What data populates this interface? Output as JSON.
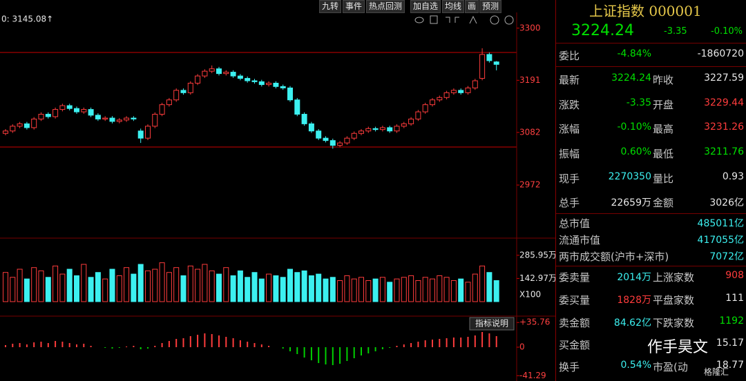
{
  "toolbar": [
    "九转",
    "事件",
    "热点回测",
    "加自选",
    "均线",
    "画",
    "预测"
  ],
  "main_chart": {
    "label": "0: 3145.08↑",
    "ylim": [
      2861,
      3330
    ],
    "yticks": [
      2972,
      3082,
      3191,
      3300
    ],
    "candles": [
      [
        3080,
        3089,
        3076,
        3085
      ],
      [
        3085,
        3099,
        3081,
        3095
      ],
      [
        3095,
        3104,
        3091,
        3100
      ],
      [
        3100,
        3104,
        3088,
        3092
      ],
      [
        3092,
        3114,
        3088,
        3110
      ],
      [
        3110,
        3124,
        3106,
        3120
      ],
      [
        3120,
        3124,
        3111,
        3115
      ],
      [
        3115,
        3134,
        3111,
        3130
      ],
      [
        3130,
        3142,
        3126,
        3138
      ],
      [
        3138,
        3142,
        3128,
        3132
      ],
      [
        3132,
        3136,
        3121,
        3125
      ],
      [
        3125,
        3134,
        3121,
        3130
      ],
      [
        3130,
        3134,
        3114,
        3118
      ],
      [
        3118,
        3122,
        3106,
        3110
      ],
      [
        3110,
        3116,
        3106,
        3112
      ],
      [
        3112,
        3116,
        3101,
        3105
      ],
      [
        3105,
        3112,
        3101,
        3108
      ],
      [
        3108,
        3116,
        3104,
        3112
      ],
      [
        3112,
        3116,
        3106,
        3110
      ],
      [
        3085,
        3090,
        3060,
        3070
      ],
      [
        3070,
        3099,
        3066,
        3095
      ],
      [
        3095,
        3124,
        3091,
        3120
      ],
      [
        3120,
        3144,
        3116,
        3140
      ],
      [
        3140,
        3154,
        3136,
        3150
      ],
      [
        3150,
        3174,
        3146,
        3170
      ],
      [
        3170,
        3174,
        3161,
        3165
      ],
      [
        3165,
        3189,
        3161,
        3185
      ],
      [
        3185,
        3204,
        3181,
        3200
      ],
      [
        3200,
        3214,
        3196,
        3210
      ],
      [
        3210,
        3222,
        3206,
        3215
      ],
      [
        3215,
        3219,
        3201,
        3205
      ],
      [
        3205,
        3212,
        3201,
        3208
      ],
      [
        3208,
        3212,
        3196,
        3200
      ],
      [
        3200,
        3204,
        3191,
        3195
      ],
      [
        3195,
        3199,
        3186,
        3190
      ],
      [
        3190,
        3194,
        3184,
        3188
      ],
      [
        3188,
        3192,
        3178,
        3182
      ],
      [
        3182,
        3189,
        3178,
        3185
      ],
      [
        3185,
        3189,
        3174,
        3178
      ],
      [
        3178,
        3182,
        3171,
        3175
      ],
      [
        3175,
        3179,
        3146,
        3150
      ],
      [
        3150,
        3154,
        3116,
        3120
      ],
      [
        3120,
        3124,
        3096,
        3100
      ],
      [
        3100,
        3104,
        3081,
        3085
      ],
      [
        3085,
        3089,
        3066,
        3070
      ],
      [
        3070,
        3074,
        3061,
        3065
      ],
      [
        3065,
        3069,
        3048,
        3055
      ],
      [
        3055,
        3064,
        3051,
        3060
      ],
      [
        3060,
        3074,
        3056,
        3070
      ],
      [
        3070,
        3084,
        3066,
        3080
      ],
      [
        3080,
        3089,
        3076,
        3085
      ],
      [
        3085,
        3094,
        3081,
        3090
      ],
      [
        3090,
        3094,
        3084,
        3088
      ],
      [
        3088,
        3096,
        3084,
        3092
      ],
      [
        3092,
        3096,
        3081,
        3085
      ],
      [
        3085,
        3099,
        3081,
        3095
      ],
      [
        3095,
        3104,
        3091,
        3100
      ],
      [
        3100,
        3114,
        3096,
        3110
      ],
      [
        3110,
        3129,
        3106,
        3125
      ],
      [
        3125,
        3144,
        3121,
        3140
      ],
      [
        3140,
        3154,
        3136,
        3150
      ],
      [
        3150,
        3159,
        3146,
        3155
      ],
      [
        3155,
        3169,
        3151,
        3165
      ],
      [
        3165,
        3174,
        3161,
        3170
      ],
      [
        3170,
        3174,
        3161,
        3165
      ],
      [
        3165,
        3179,
        3161,
        3175
      ],
      [
        3175,
        3194,
        3171,
        3190
      ],
      [
        3195,
        3258,
        3191,
        3245
      ],
      [
        3245,
        3249,
        3228,
        3232
      ],
      [
        3229.44,
        3231.26,
        3211.76,
        3224.24
      ]
    ]
  },
  "volume_chart": {
    "label": "X100",
    "ylim": [
      0,
      362
    ],
    "yticks": [
      {
        "value": 142.97,
        "label": "142.97万"
      },
      {
        "value": 285.95,
        "label": "285.95万"
      }
    ],
    "values": [
      180,
      150,
      200,
      140,
      210,
      190,
      150,
      220,
      170,
      200,
      160,
      230,
      150,
      180,
      140,
      200,
      160,
      210,
      170,
      230,
      190,
      200,
      240,
      180,
      210,
      160,
      220,
      200,
      230,
      190,
      170,
      210,
      160,
      190,
      150,
      180,
      140,
      170,
      160,
      150,
      200,
      180,
      190,
      160,
      170,
      140,
      150,
      130,
      160,
      140,
      150,
      130,
      140,
      150,
      120,
      140,
      150,
      160,
      130,
      150,
      140,
      160,
      150,
      130,
      140,
      120,
      170,
      220,
      180,
      130
    ]
  },
  "macd_chart": {
    "button": "指标说明",
    "ylim": [
      -45,
      43
    ],
    "yticks": [
      {
        "value": 35.76,
        "label": "+35.76"
      },
      0,
      -41.29
    ],
    "values": [
      3,
      5,
      6,
      4,
      7,
      8,
      6,
      9,
      8,
      6,
      4,
      5,
      2,
      0,
      -1,
      -2,
      -1,
      1,
      2,
      -3,
      -2,
      2,
      6,
      9,
      12,
      13,
      16,
      18,
      20,
      19,
      17,
      15,
      13,
      10,
      8,
      6,
      4,
      2,
      0,
      -2,
      -6,
      -10,
      -15,
      -19,
      -23,
      -25,
      -26,
      -24,
      -20,
      -16,
      -12,
      -9,
      -6,
      -3,
      -1,
      2,
      4,
      6,
      8,
      10,
      11,
      12,
      13,
      14,
      14,
      15,
      17,
      22,
      20,
      16
    ]
  },
  "quote": {
    "name": "上证指数 000001",
    "price": "3224.24",
    "change": "-3.35",
    "pct": "-0.10%",
    "rows": [
      {
        "label": "委比",
        "value": "-4.84%",
        "value2": "-1860720"
      },
      {
        "label": "最新",
        "value": "3224.24",
        "label2": "昨收",
        "value2": "3227.59"
      },
      {
        "label": "涨跌",
        "value": "-3.35",
        "label2": "开盘",
        "value2": "3229.44"
      },
      {
        "label": "涨幅",
        "value": "-0.10%",
        "label2": "最高",
        "value2": "3231.26"
      },
      {
        "label": "振幅",
        "value": "0.60%",
        "label2": "最低",
        "value2": "3211.76"
      },
      {
        "label": "现手",
        "value": "2270350",
        "label2": "量比",
        "value2": "0.93"
      },
      {
        "label": "总手",
        "value": "22659万",
        "label2": "金额",
        "value2": "3026亿"
      },
      {
        "label": "总市值",
        "value2": "485011亿"
      },
      {
        "label": "流通市值",
        "value2": "417055亿"
      },
      {
        "label": "两市成交额(沪市+深市)",
        "value2": "7072亿"
      },
      {
        "label": "委卖量",
        "value": "2014万",
        "label2": "上涨家数",
        "value2": "908"
      },
      {
        "label": "委买量",
        "value": "1828万",
        "label2": "平盘家数",
        "value2": "111"
      },
      {
        "label": "卖金额",
        "value": "84.62亿",
        "label2": "下跌家数",
        "value2": "1192"
      },
      {
        "label": "买金额",
        "value2": "15.17"
      },
      {
        "label": "换手",
        "value": "0.54%",
        "label2": "市盈(动",
        "value2": "18.77"
      }
    ]
  },
  "watermark": {
    "author": "作手昊文",
    "source": "格隆汇"
  }
}
